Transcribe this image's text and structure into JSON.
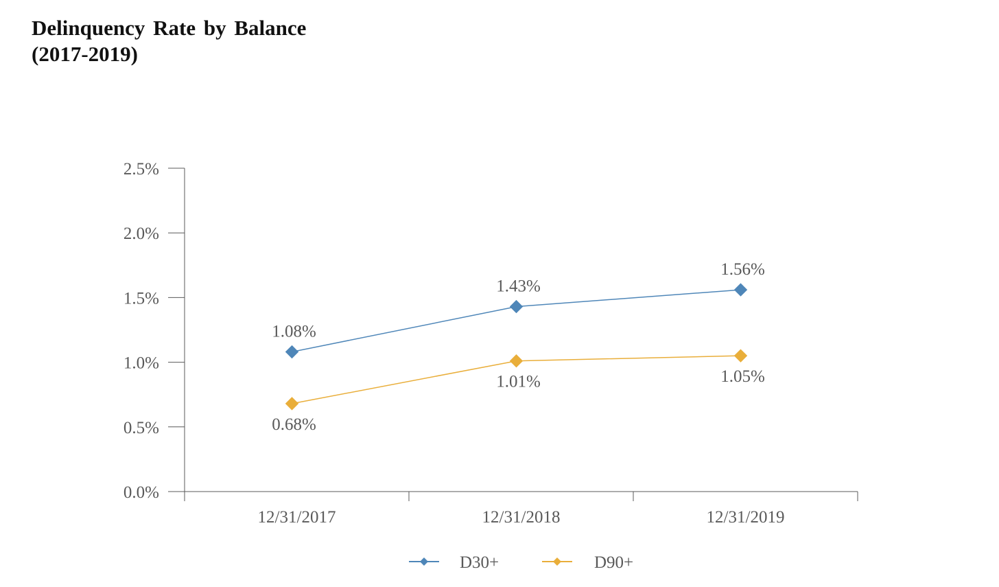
{
  "chart_data": {
    "type": "line",
    "title_line1": "Delinquency Rate by Balance",
    "title_line2": "(2017-2019)",
    "categories": [
      "12/31/2017",
      "12/31/2018",
      "12/31/2019"
    ],
    "y_ticks": [
      "0.0%",
      "0.5%",
      "1.0%",
      "1.5%",
      "2.0%",
      "2.5%"
    ],
    "ylim": [
      0,
      2.5
    ],
    "grid": false,
    "legend_position": "bottom",
    "series": [
      {
        "name": "D30+",
        "values": [
          1.08,
          1.43,
          1.56
        ],
        "labels": [
          "1.08%",
          "1.43%",
          "1.56%"
        ],
        "label_position": "above",
        "color": "#4E86B8"
      },
      {
        "name": "D90+",
        "values": [
          0.68,
          1.01,
          1.05
        ],
        "labels": [
          "0.68%",
          "1.01%",
          "1.05%"
        ],
        "label_position": "below",
        "color": "#E9AE3A"
      }
    ]
  }
}
